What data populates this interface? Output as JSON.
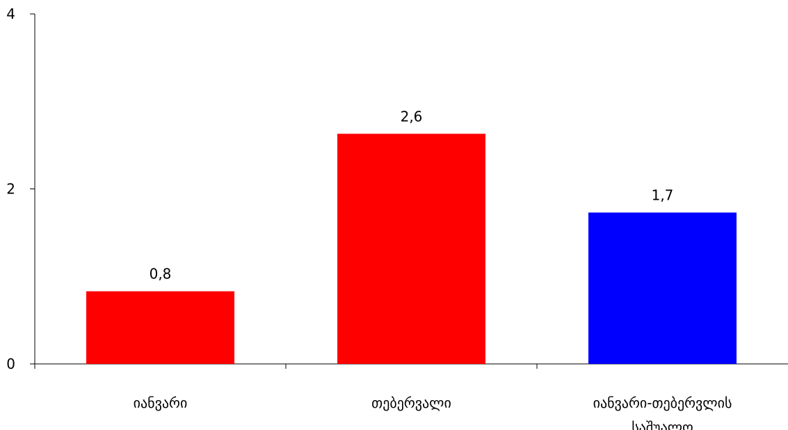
{
  "chart_data": {
    "type": "bar",
    "title": "",
    "xlabel": "",
    "ylabel": "",
    "ylim": [
      0,
      4
    ],
    "yticks": [
      0,
      2,
      4
    ],
    "grid": false,
    "categories": [
      [
        "იანვარი"
      ],
      [
        "თებერვალი"
      ],
      [
        "იანვარი-თებერვლის",
        "საშუალო"
      ]
    ],
    "values": [
      0.83,
      2.63,
      1.73
    ],
    "value_labels": [
      "0,8",
      "2,6",
      "1,7"
    ],
    "colors": [
      "#ff0000",
      "#ff0000",
      "#0000ff"
    ]
  }
}
